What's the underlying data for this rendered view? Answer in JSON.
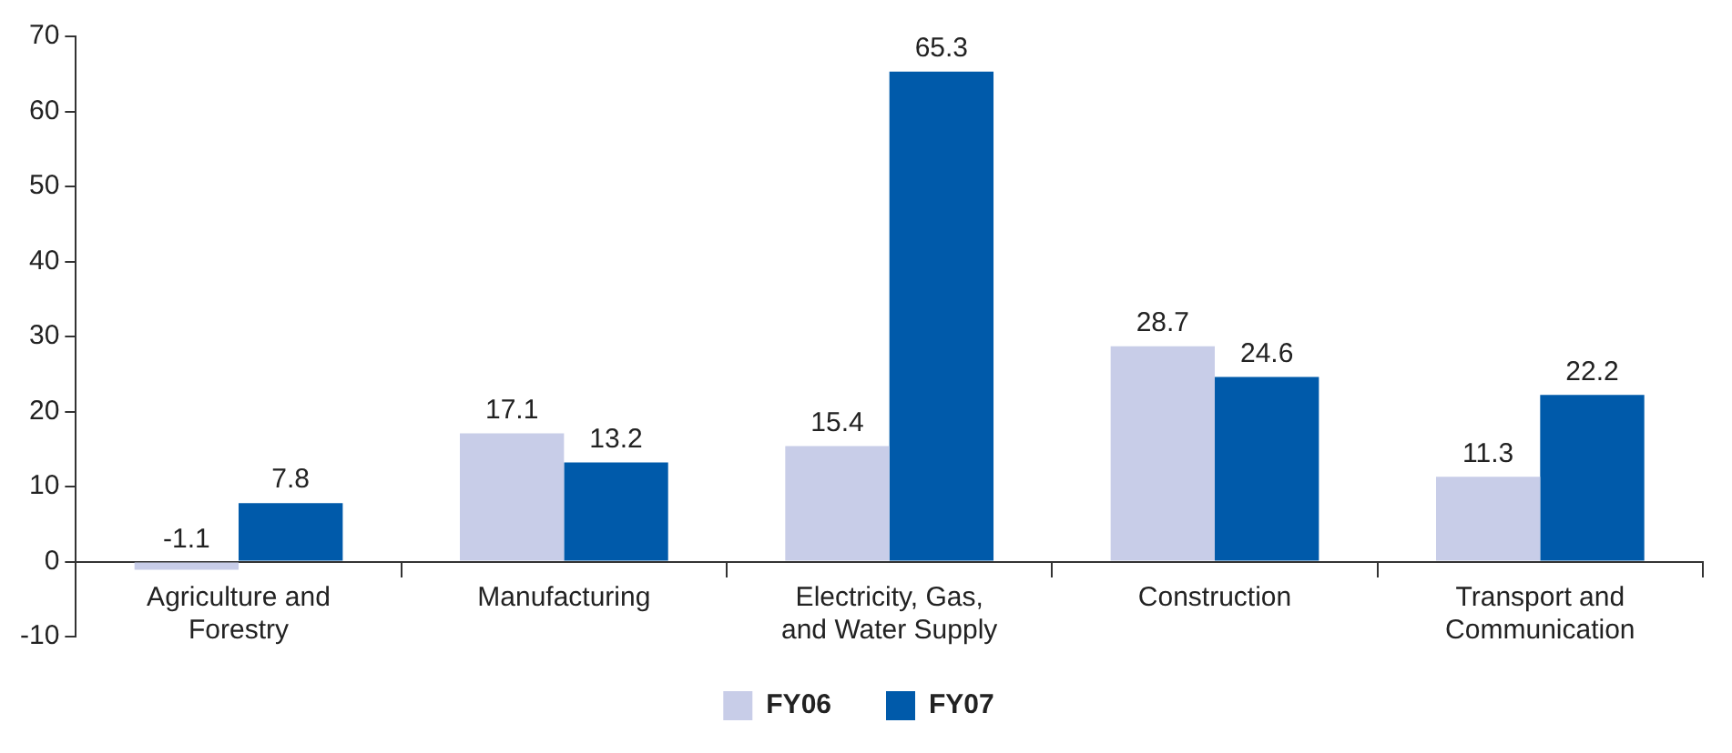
{
  "chart_data": {
    "type": "bar",
    "categories": [
      "Agriculture and Forestry",
      "Manufacturing",
      "Electricity, Gas, and Water Supply",
      "Construction",
      "Transport and Communication"
    ],
    "series": [
      {
        "name": "FY06",
        "color": "#c8cde8",
        "values": [
          -1.1,
          17.1,
          15.4,
          28.7,
          11.3
        ]
      },
      {
        "name": "FY07",
        "color": "#005aaa",
        "values": [
          7.8,
          13.2,
          65.3,
          24.6,
          22.2
        ]
      }
    ],
    "ylim": [
      -10,
      70
    ],
    "yticks": [
      -10,
      0,
      10,
      20,
      30,
      40,
      50,
      60,
      70
    ],
    "grid": false,
    "legend": "bottom",
    "data_labels": true
  }
}
